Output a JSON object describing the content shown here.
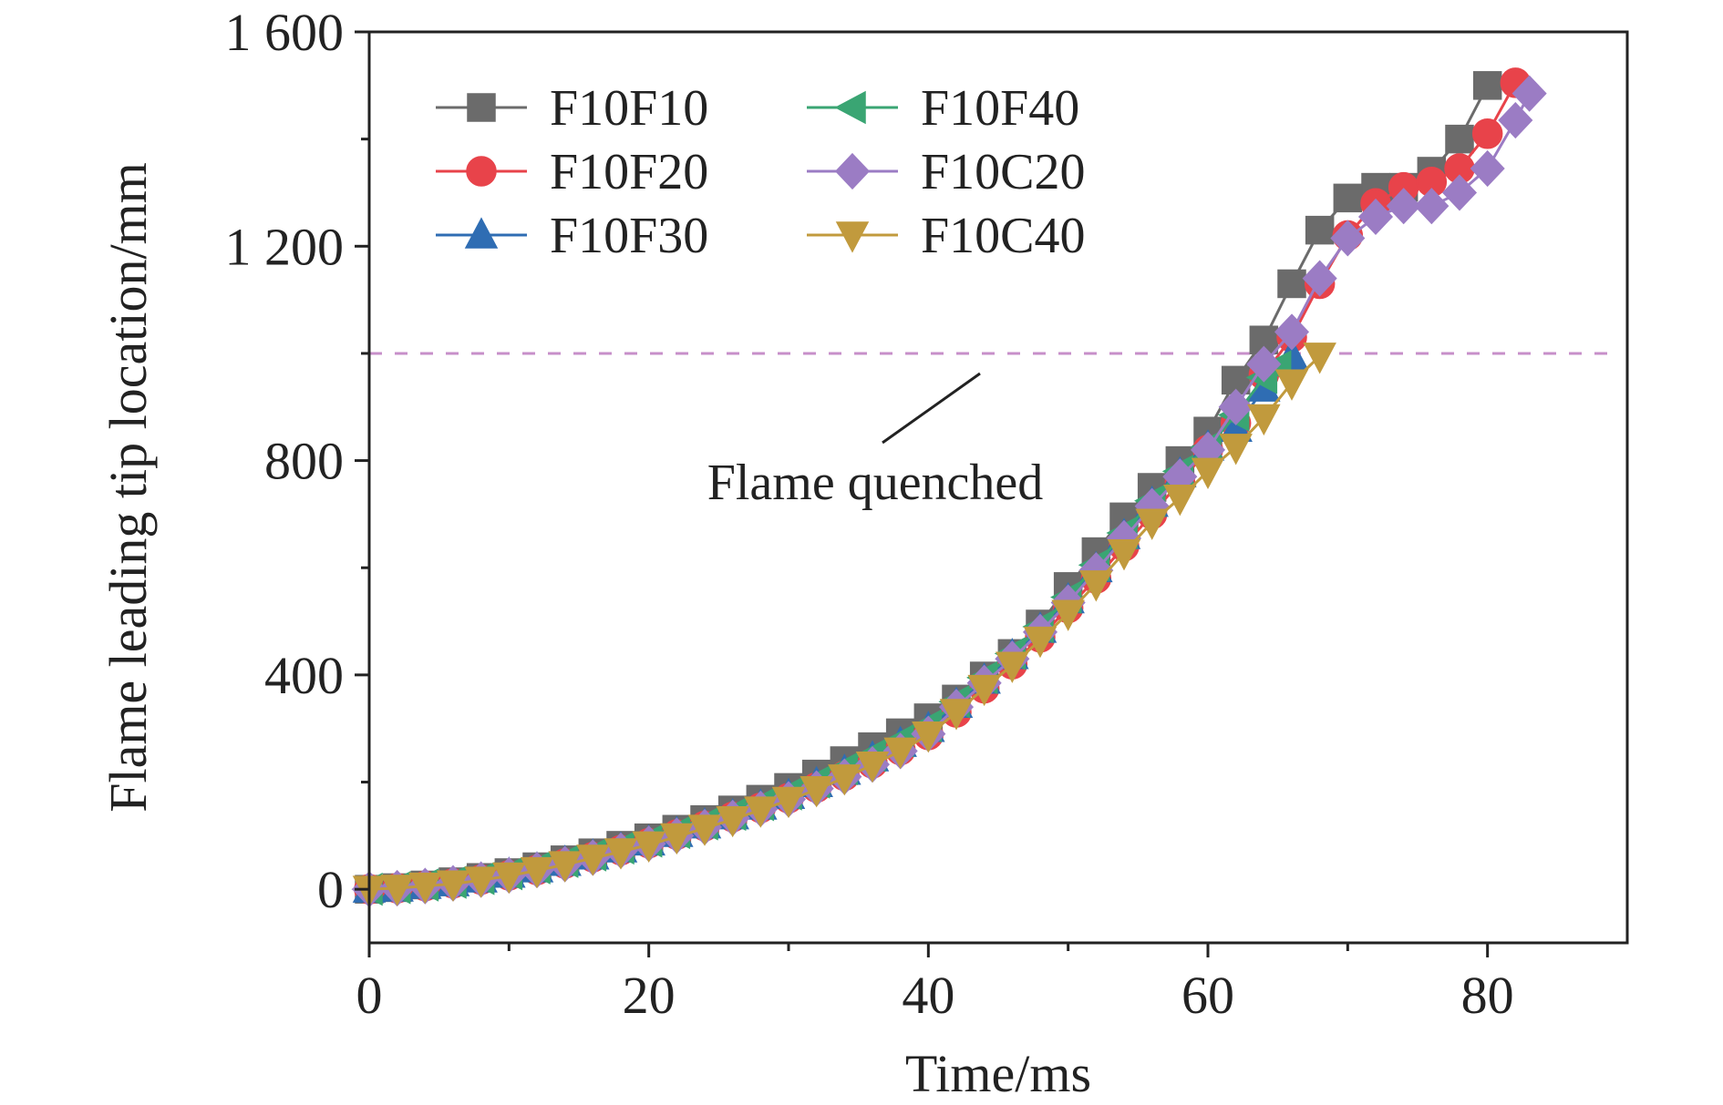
{
  "chart_data": {
    "type": "line",
    "title": "",
    "xlabel": "Time/ms",
    "ylabel": "Flame leading tip location/mm",
    "xlim": [
      0,
      90
    ],
    "ylim": [
      -100,
      1600
    ],
    "xticks": [
      0,
      20,
      40,
      60,
      80
    ],
    "xtick_labels": [
      "0",
      "20",
      "40",
      "60",
      "80"
    ],
    "yticks": [
      0,
      400,
      800,
      1200,
      1600
    ],
    "ytick_labels": [
      "0",
      "400",
      "800",
      "1 200",
      "1 600"
    ],
    "grid": false,
    "legend_position": "top-left",
    "annotation": {
      "text": "Flame quenched",
      "reference_y": 1000,
      "reference_style": "dashed",
      "reference_color": "#c78fc9"
    },
    "series": [
      {
        "name": "F10F10",
        "color": "#6b6b6b",
        "marker": "square",
        "x": [
          0,
          2,
          4,
          6,
          8,
          10,
          12,
          14,
          16,
          18,
          20,
          22,
          24,
          26,
          28,
          30,
          32,
          34,
          36,
          38,
          40,
          42,
          44,
          46,
          48,
          50,
          52,
          54,
          56,
          58,
          60,
          62,
          64,
          66,
          68,
          70,
          72,
          74,
          76,
          78,
          80
        ],
        "y": [
          0,
          3,
          8,
          14,
          22,
          31,
          42,
          55,
          68,
          82,
          96,
          112,
          130,
          148,
          168,
          190,
          215,
          240,
          266,
          292,
          320,
          355,
          398,
          440,
          495,
          565,
          630,
          695,
          750,
          800,
          855,
          950,
          1025,
          1130,
          1230,
          1290,
          1310,
          1310,
          1340,
          1400,
          1500
        ]
      },
      {
        "name": "F10F20",
        "color": "#e8434a",
        "marker": "circle",
        "x": [
          0,
          2,
          4,
          6,
          8,
          10,
          12,
          14,
          16,
          18,
          20,
          22,
          24,
          26,
          28,
          30,
          32,
          34,
          36,
          38,
          40,
          42,
          44,
          46,
          48,
          50,
          52,
          54,
          56,
          58,
          60,
          62,
          64,
          66,
          68,
          70,
          72,
          74,
          76,
          78,
          80,
          82
        ],
        "y": [
          0,
          2,
          6,
          11,
          18,
          26,
          36,
          48,
          60,
          73,
          86,
          102,
          118,
          135,
          152,
          170,
          190,
          212,
          235,
          260,
          288,
          330,
          375,
          420,
          470,
          525,
          580,
          640,
          700,
          760,
          820,
          870,
          960,
          1030,
          1130,
          1220,
          1280,
          1310,
          1320,
          1345,
          1410,
          1505
        ]
      },
      {
        "name": "F10F30",
        "color": "#2f6db3",
        "marker": "triangle-up",
        "x": [
          0,
          2,
          4,
          6,
          8,
          10,
          12,
          14,
          16,
          18,
          20,
          22,
          24,
          26,
          28,
          30,
          32,
          34,
          36,
          38,
          40,
          42,
          44,
          46,
          48,
          50,
          52,
          54,
          56,
          58,
          60,
          62,
          64,
          66
        ],
        "y": [
          0,
          2,
          7,
          12,
          19,
          28,
          38,
          50,
          62,
          75,
          88,
          104,
          120,
          137,
          155,
          175,
          197,
          220,
          245,
          272,
          300,
          345,
          390,
          436,
          485,
          540,
          598,
          660,
          720,
          775,
          825,
          860,
          935,
          995
        ]
      },
      {
        "name": "F10F40",
        "color": "#3aa573",
        "marker": "triangle-left",
        "x": [
          0,
          2,
          4,
          6,
          8,
          10,
          12,
          14,
          16,
          18,
          20,
          22,
          24,
          26,
          28,
          30,
          32,
          34,
          36,
          38,
          40,
          42,
          44,
          46,
          48,
          50,
          52,
          54,
          56,
          58,
          60,
          62,
          64,
          65
        ],
        "y": [
          0,
          3,
          8,
          13,
          20,
          29,
          40,
          52,
          64,
          77,
          90,
          106,
          122,
          140,
          158,
          178,
          200,
          225,
          250,
          277,
          305,
          350,
          395,
          440,
          490,
          545,
          605,
          665,
          725,
          780,
          825,
          885,
          955,
          975
        ]
      },
      {
        "name": "F10C20",
        "color": "#9b7cc4",
        "marker": "diamond",
        "x": [
          0,
          2,
          4,
          6,
          8,
          10,
          12,
          14,
          16,
          18,
          20,
          22,
          24,
          26,
          28,
          30,
          32,
          34,
          36,
          38,
          40,
          42,
          44,
          46,
          48,
          50,
          52,
          54,
          56,
          58,
          60,
          62,
          64,
          66,
          68,
          70,
          72,
          74,
          76,
          78,
          80,
          82,
          83
        ],
        "y": [
          0,
          2,
          6,
          11,
          18,
          26,
          36,
          47,
          59,
          72,
          85,
          100,
          116,
          133,
          150,
          168,
          188,
          210,
          233,
          258,
          290,
          340,
          385,
          430,
          480,
          535,
          595,
          655,
          715,
          770,
          820,
          900,
          980,
          1040,
          1140,
          1215,
          1255,
          1275,
          1275,
          1300,
          1345,
          1435,
          1485
        ]
      },
      {
        "name": "F10C40",
        "color": "#c19a3d",
        "marker": "triangle-down",
        "x": [
          0,
          2,
          4,
          6,
          8,
          10,
          12,
          14,
          16,
          18,
          20,
          22,
          24,
          26,
          28,
          30,
          32,
          34,
          36,
          38,
          40,
          42,
          44,
          46,
          48,
          50,
          52,
          54,
          56,
          58,
          60,
          62,
          64,
          66,
          68
        ],
        "y": [
          0,
          2,
          6,
          10,
          17,
          25,
          35,
          46,
          58,
          70,
          83,
          98,
          114,
          130,
          148,
          166,
          186,
          208,
          232,
          258,
          288,
          330,
          375,
          418,
          465,
          515,
          570,
          628,
          685,
          730,
          780,
          825,
          880,
          945,
          995
        ]
      }
    ]
  }
}
